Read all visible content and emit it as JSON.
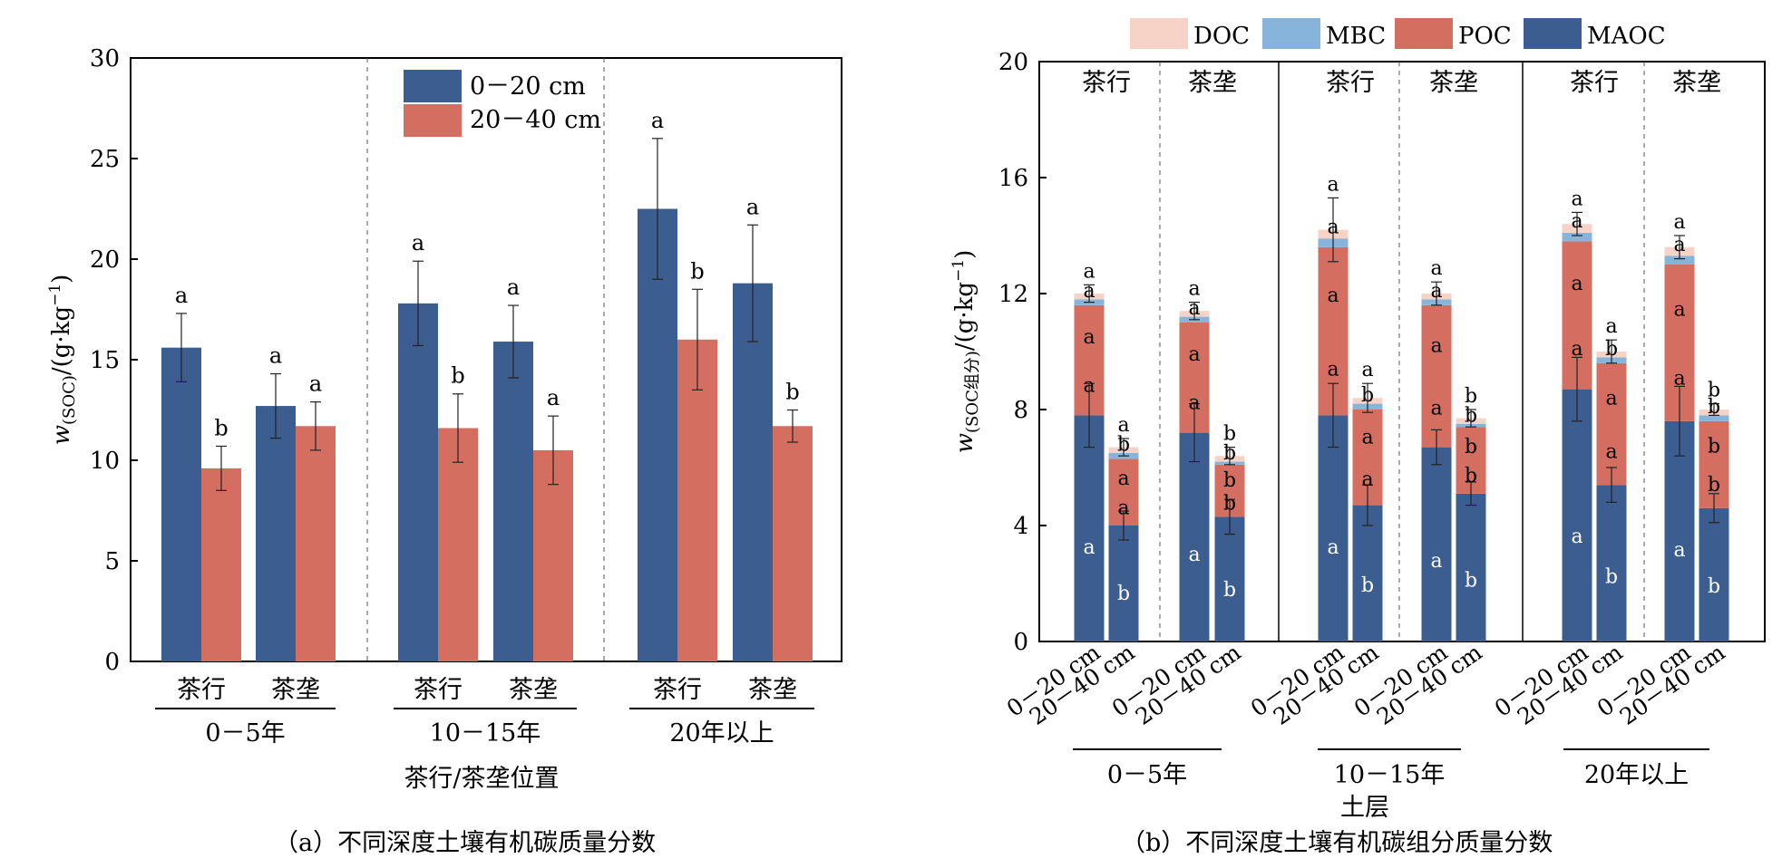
{
  "colors": {
    "blue": "#3b5d8f",
    "red": "#d46e61",
    "mbc": "#86b4da",
    "doc": "#f7d3c7"
  },
  "chart_data": [
    {
      "type": "bar",
      "panel": "a",
      "caption": "（a）不同深度土壤有机碳质量分数",
      "ylabel_var": "w",
      "ylabel_sub": "(SOC)",
      "ylabel_unit": "/(g·kg",
      "ylabel_exp": "−1",
      "ylabel_close": ")",
      "xlabel": "茶行/茶垄位置",
      "ylim": [
        0,
        30
      ],
      "yticks": [
        "0",
        "5",
        "10",
        "15",
        "20",
        "25",
        "30"
      ],
      "groups": [
        "0－5年",
        "10－15年",
        "20年以上"
      ],
      "categories": [
        "茶行",
        "茶垄",
        "茶行",
        "茶垄",
        "茶行",
        "茶垄"
      ],
      "legend_position": "top-center",
      "series": [
        {
          "name": "0－20 cm",
          "values": [
            15.6,
            12.7,
            17.8,
            15.9,
            22.5,
            18.8
          ],
          "errors": [
            1.7,
            1.6,
            2.1,
            1.8,
            3.5,
            2.9
          ],
          "letters": [
            "a",
            "a",
            "a",
            "a",
            "a",
            "a"
          ]
        },
        {
          "name": "20－40 cm",
          "values": [
            9.6,
            11.7,
            11.6,
            10.5,
            16.0,
            11.7
          ],
          "errors": [
            1.1,
            1.2,
            1.7,
            1.7,
            2.5,
            0.8
          ],
          "letters": [
            "b",
            "a",
            "b",
            "a",
            "b",
            "b"
          ]
        }
      ]
    },
    {
      "type": "stacked_bar",
      "panel": "b",
      "caption": "（b）不同深度土壤有机碳组分质量分数",
      "ylabel_var": "w",
      "ylabel_sub": "(SOC组分)",
      "ylabel_unit": "/(g·kg",
      "ylabel_exp": "−1",
      "ylabel_close": ")",
      "xlabel": "土层",
      "ylim": [
        0,
        20
      ],
      "yticks": [
        "0",
        "4",
        "8",
        "12",
        "16",
        "20"
      ],
      "groups": [
        "0－5年",
        "10－15年",
        "20年以上"
      ],
      "positions": [
        "茶行",
        "茶垄",
        "茶行",
        "茶垄",
        "茶行",
        "茶垄"
      ],
      "categories": [
        "0－20 cm",
        "20－40 cm",
        "0－20 cm",
        "20－40 cm",
        "0－20 cm",
        "20－40 cm",
        "0－20 cm",
        "20－40 cm",
        "0－20 cm",
        "20－40 cm",
        "0－20 cm",
        "20－40 cm"
      ],
      "legend_position": "top",
      "series": [
        {
          "name": "MAOC",
          "values": [
            7.8,
            4.0,
            7.2,
            4.3,
            7.8,
            4.7,
            6.7,
            5.1,
            8.7,
            5.4,
            7.6,
            4.6
          ],
          "errors": [
            1.1,
            0.5,
            1.0,
            0.6,
            1.1,
            0.7,
            0.6,
            0.4,
            1.1,
            0.6,
            1.2,
            0.5
          ],
          "letters": [
            "a",
            "b",
            "a",
            "b",
            "a",
            "b",
            "a",
            "b",
            "a",
            "b",
            "a",
            "b"
          ]
        },
        {
          "name": "POC",
          "values": [
            3.8,
            2.3,
            3.8,
            1.8,
            5.8,
            3.3,
            4.9,
            2.3,
            5.1,
            4.2,
            5.4,
            3.0
          ],
          "errors": [
            0.0,
            0.0,
            0.0,
            0.0,
            0.0,
            0.0,
            0.0,
            0.0,
            0.0,
            0.0,
            0.0,
            0.0
          ],
          "letters": [
            "a",
            "a",
            "a",
            "b",
            "a",
            "a",
            "a",
            "b",
            "a",
            "a",
            "a",
            "b"
          ]
        },
        {
          "name": "MBC",
          "values": [
            0.2,
            0.2,
            0.2,
            0.1,
            0.3,
            0.2,
            0.2,
            0.1,
            0.3,
            0.2,
            0.3,
            0.2
          ],
          "errors": [
            0.0,
            0.0,
            0.0,
            0.0,
            0.0,
            0.0,
            0.0,
            0.0,
            0.0,
            0.0,
            0.0,
            0.0
          ],
          "letters": [
            "a",
            "b",
            "a",
            "b",
            "a",
            "b",
            "a",
            "b",
            "a",
            "b",
            "a",
            "b"
          ]
        },
        {
          "name": "DOC",
          "values": [
            0.2,
            0.2,
            0.2,
            0.2,
            0.3,
            0.2,
            0.2,
            0.2,
            0.3,
            0.2,
            0.3,
            0.2
          ],
          "errors": [
            0.3,
            0.3,
            0.3,
            0.3,
            1.1,
            0.5,
            0.4,
            0.3,
            0.4,
            0.4,
            0.4,
            0.2
          ],
          "letters": [
            "a",
            "a",
            "a",
            "b",
            "a",
            "a",
            "a",
            "b",
            "a",
            "a",
            "a",
            "b"
          ]
        }
      ]
    }
  ]
}
